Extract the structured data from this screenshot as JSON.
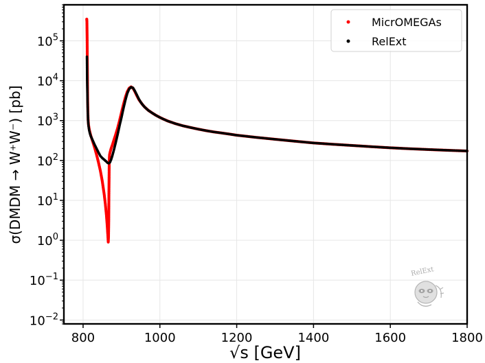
{
  "chart_data": {
    "type": "scatter",
    "xlabel": "√s [GeV]",
    "ylabel": "σ(DMDM → W⁺W⁻) [pb]",
    "xlim": [
      750,
      1800
    ],
    "ylim": [
      0.008,
      800000
    ],
    "yscale": "log",
    "grid": true,
    "legend_position": "top-right",
    "x_ticks": [
      800,
      1000,
      1200,
      1400,
      1600,
      1800
    ],
    "x_tick_labels": [
      "800",
      "1000",
      "1200",
      "1400",
      "1600",
      "1800"
    ],
    "y_ticks": [
      0.01,
      0.1,
      1,
      10,
      100,
      1000,
      10000,
      100000
    ],
    "y_tick_labels": [
      {
        "base": "10",
        "exp": "−2"
      },
      {
        "base": "10",
        "exp": "−1"
      },
      {
        "base": "10",
        "exp": "0"
      },
      {
        "base": "10",
        "exp": "1"
      },
      {
        "base": "10",
        "exp": "2"
      },
      {
        "base": "10",
        "exp": "3"
      },
      {
        "base": "10",
        "exp": "4"
      },
      {
        "base": "10",
        "exp": "5"
      }
    ],
    "series": [
      {
        "name": "MicrOMEGAs",
        "color": "#ff0000",
        "x": [
          809.5,
          810,
          810.5,
          811,
          811.5,
          812,
          812.5,
          813,
          814,
          816,
          818,
          820,
          825,
          830,
          835,
          840,
          845,
          850,
          855,
          858,
          861,
          863,
          864.5,
          865.5,
          866.2,
          866.8,
          867.2,
          867.6,
          868,
          868.5,
          869,
          870,
          871,
          873,
          876,
          880,
          885,
          890,
          895,
          900,
          905,
          910,
          915,
          920,
          925,
          930,
          935,
          940,
          945,
          950,
          955,
          960,
          970,
          980,
          990,
          1000,
          1010,
          1020,
          1040,
          1060,
          1080,
          1100,
          1120,
          1140,
          1160,
          1180,
          1200,
          1250,
          1300,
          1350,
          1400,
          1450,
          1500,
          1550,
          1600,
          1650,
          1700,
          1750,
          1800
        ],
        "y": [
          350000,
          300000,
          120000,
          30000,
          8000,
          3000,
          1600,
          1100,
          800,
          600,
          500,
          420,
          300,
          210,
          140,
          90,
          55,
          30,
          14,
          8,
          4,
          2.2,
          1.3,
          0.9,
          1.2,
          3,
          12,
          30,
          80,
          120,
          140,
          155,
          170,
          200,
          240,
          320,
          450,
          650,
          1000,
          1600,
          2500,
          3800,
          5300,
          6500,
          7000,
          6500,
          5300,
          4200,
          3400,
          2900,
          2500,
          2200,
          1800,
          1550,
          1350,
          1200,
          1080,
          980,
          840,
          740,
          670,
          610,
          560,
          520,
          490,
          460,
          430,
          380,
          340,
          305,
          275,
          255,
          238,
          222,
          208,
          197,
          188,
          180,
          173
        ]
      },
      {
        "name": "RelExt",
        "color": "#000000",
        "x": [
          810,
          810.5,
          811,
          811.5,
          812,
          812.5,
          813,
          814,
          816,
          818,
          820,
          825,
          830,
          835,
          840,
          845,
          850,
          855,
          860,
          864,
          867,
          870,
          873,
          876,
          880,
          885,
          890,
          895,
          900,
          905,
          910,
          915,
          920,
          925,
          930,
          935,
          940,
          945,
          950,
          955,
          960,
          970,
          980,
          990,
          1000,
          1010,
          1020,
          1040,
          1060,
          1080,
          1100,
          1120,
          1140,
          1160,
          1180,
          1200,
          1250,
          1300,
          1350,
          1400,
          1450,
          1500,
          1550,
          1600,
          1650,
          1700,
          1750,
          1800
        ],
        "y": [
          40000,
          12000,
          6000,
          3500,
          2000,
          1400,
          1000,
          750,
          560,
          470,
          410,
          320,
          250,
          200,
          160,
          130,
          115,
          105,
          95,
          87,
          85,
          90,
          105,
          130,
          180,
          280,
          450,
          750,
          1200,
          2000,
          3200,
          4800,
          6200,
          6900,
          6600,
          5500,
          4400,
          3500,
          2900,
          2500,
          2200,
          1800,
          1550,
          1350,
          1200,
          1080,
          980,
          840,
          740,
          670,
          610,
          560,
          520,
          490,
          460,
          430,
          380,
          340,
          305,
          275,
          255,
          238,
          222,
          208,
          197,
          188,
          180,
          173
        ]
      }
    ]
  },
  "watermark": {
    "text": "RelExt"
  }
}
